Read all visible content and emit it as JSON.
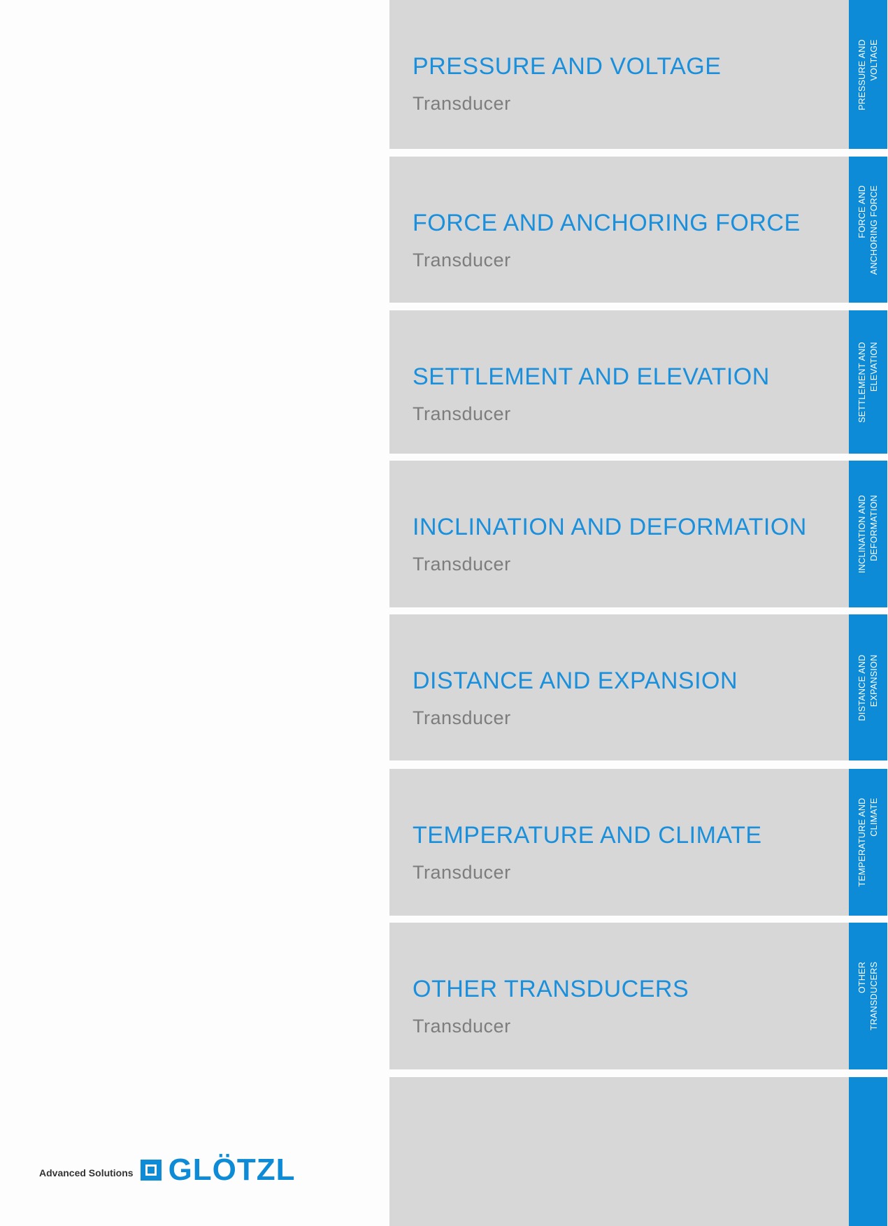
{
  "sections": [
    {
      "title": "PRESSURE AND VOLTAGE",
      "subtitle": "Transducer",
      "tab": [
        "PRESSURE AND",
        "VOLTAGE"
      ]
    },
    {
      "title": "FORCE AND ANCHORING FORCE",
      "subtitle": "Transducer",
      "tab": [
        "FORCE AND",
        "ANCHORING FORCE"
      ]
    },
    {
      "title": "SETTLEMENT AND ELEVATION",
      "subtitle": "Transducer",
      "tab": [
        "SETTLEMENT AND",
        "ELEVATION"
      ]
    },
    {
      "title": "INCLINATION AND DEFORMATION",
      "subtitle": "Transducer",
      "tab": [
        "INCLINATION AND",
        "DEFORMATION"
      ]
    },
    {
      "title": "DISTANCE AND EXPANSION",
      "subtitle": "Transducer",
      "tab": [
        "DISTANCE AND",
        "EXPANSION"
      ]
    },
    {
      "title": "TEMPERATURE AND CLIMATE",
      "subtitle": "Transducer",
      "tab": [
        "TEMPERATURE AND",
        "CLIMATE"
      ]
    },
    {
      "title": "OTHER TRANSDUCERS",
      "subtitle": "Transducer",
      "tab": [
        "OTHER",
        "TRANSDUCERS"
      ]
    }
  ],
  "logo": {
    "tagline": "Advanced Solutions",
    "brand": "GLÖTZL"
  },
  "colors": {
    "accent": "#0d8bd6",
    "panel": "#d7d7d7",
    "subtitle": "#7d7d7d"
  }
}
